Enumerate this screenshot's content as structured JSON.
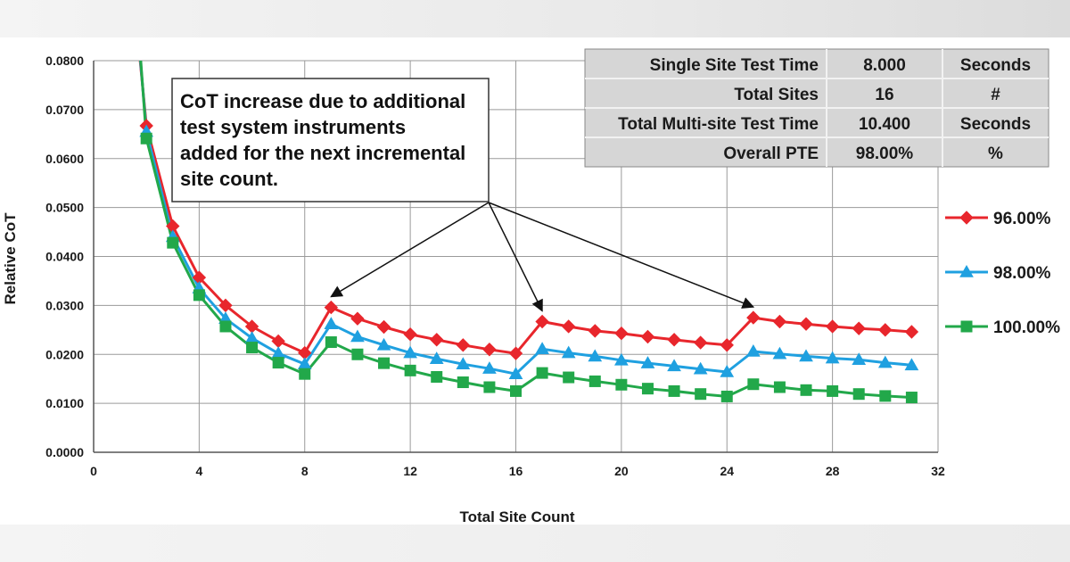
{
  "chart_data": {
    "type": "line",
    "xlabel": "Total Site Count",
    "ylabel": "Relative CoT",
    "xlim": [
      0,
      32
    ],
    "ylim": [
      0,
      0.08
    ],
    "x_ticks": [
      "0",
      "4",
      "8",
      "12",
      "16",
      "20",
      "24",
      "28",
      "32"
    ],
    "y_ticks": [
      "0.0000",
      "0.0100",
      "0.0200",
      "0.0300",
      "0.0400",
      "0.0500",
      "0.0600",
      "0.0700",
      "0.0800"
    ],
    "grid": true,
    "legend_placement": "right",
    "series": [
      {
        "name": "96.00%",
        "color": "#e8262c",
        "marker": "diamond",
        "x": [
          2,
          3,
          4,
          5,
          6,
          7,
          8,
          9,
          10,
          11,
          12,
          13,
          14,
          15,
          16,
          17,
          18,
          19,
          20,
          21,
          22,
          23,
          24,
          25,
          26,
          27,
          28,
          29,
          30,
          31
        ],
        "y": [
          0.0667,
          0.0462,
          0.0357,
          0.03,
          0.0257,
          0.0227,
          0.0203,
          0.0296,
          0.0273,
          0.0256,
          0.0241,
          0.023,
          0.0219,
          0.021,
          0.0202,
          0.0267,
          0.0257,
          0.0248,
          0.0243,
          0.0236,
          0.023,
          0.0224,
          0.0219,
          0.0275,
          0.0267,
          0.0262,
          0.0257,
          0.0253,
          0.025,
          0.0246
        ]
      },
      {
        "name": "98.00%",
        "color": "#1fa0e0",
        "marker": "triangle",
        "x": [
          2,
          3,
          4,
          5,
          6,
          7,
          8,
          9,
          10,
          11,
          12,
          13,
          14,
          15,
          16,
          17,
          18,
          19,
          20,
          21,
          22,
          23,
          24,
          25,
          26,
          27,
          28,
          29,
          30,
          31
        ],
        "y": [
          0.0655,
          0.044,
          0.0335,
          0.0273,
          0.0233,
          0.0202,
          0.018,
          0.0262,
          0.0236,
          0.0219,
          0.0203,
          0.0191,
          0.018,
          0.0171,
          0.016,
          0.0211,
          0.0203,
          0.0196,
          0.0188,
          0.0182,
          0.0176,
          0.017,
          0.0164,
          0.0206,
          0.0201,
          0.0196,
          0.0192,
          0.0189,
          0.0183,
          0.0178
        ]
      },
      {
        "name": "100.00%",
        "color": "#22a84a",
        "marker": "square",
        "x": [
          2,
          3,
          4,
          5,
          6,
          7,
          8,
          9,
          10,
          11,
          12,
          13,
          14,
          15,
          16,
          17,
          18,
          19,
          20,
          21,
          22,
          23,
          24,
          25,
          26,
          27,
          28,
          29,
          30,
          31
        ],
        "y": [
          0.0641,
          0.0428,
          0.0321,
          0.0257,
          0.0214,
          0.0183,
          0.016,
          0.0225,
          0.02,
          0.0182,
          0.0167,
          0.0154,
          0.0143,
          0.0133,
          0.0125,
          0.0162,
          0.0153,
          0.0145,
          0.0138,
          0.013,
          0.0125,
          0.0119,
          0.0114,
          0.0139,
          0.0133,
          0.0127,
          0.0125,
          0.0119,
          0.0115,
          0.0112
        ]
      }
    ],
    "annotation": {
      "lines": [
        "CoT increase due to additional",
        "test system instruments",
        "added for the next incremental",
        "site count."
      ],
      "arrow_targets": [
        [
          9,
          0.0296
        ],
        [
          17,
          0.0267
        ],
        [
          25,
          0.0275
        ]
      ]
    },
    "table": {
      "rows": [
        [
          "Single Site Test Time",
          "8.000",
          "Seconds"
        ],
        [
          "Total Sites",
          "16",
          "#"
        ],
        [
          "Total Multi-site Test Time",
          "10.400",
          "Seconds"
        ],
        [
          "Overall PTE",
          "98.00%",
          "%"
        ]
      ]
    }
  }
}
